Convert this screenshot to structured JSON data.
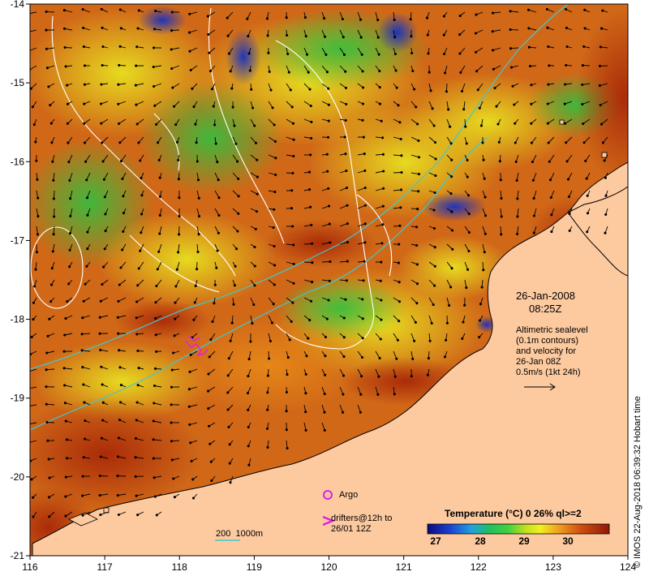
{
  "map": {
    "date_label": "26-Jan-2008",
    "time_label": "08:25Z",
    "altimetry_note": [
      "Altimetric sealevel",
      "(0.1m contours)",
      "and velocity for",
      "26-Jan 08Z",
      "0.5m/s (1kt 24h)"
    ],
    "argo_label": "Argo",
    "drifter_label": [
      "drifters@12h to",
      "26/01 12Z"
    ],
    "isobath_label": "200  1000m",
    "credit": "© IMOS 22-Aug-2018 06:39:32 Hobart time",
    "x_ticks": [
      "116",
      "117",
      "118",
      "119",
      "120",
      "121",
      "122",
      "123",
      "124"
    ],
    "y_ticks": [
      "-14",
      "-15",
      "-16",
      "-17",
      "-18",
      "-19",
      "-20",
      "-21"
    ],
    "legend": {
      "title": "Temperature (°C) 0 26% ql>=2",
      "ticks": [
        "27",
        "28",
        "29",
        "30"
      ],
      "range": [
        26.6,
        31.0
      ]
    },
    "colors": {
      "land": "#fdcaa0",
      "ocean_warm": "#b4320a",
      "ocean_mid": "#e8901a",
      "ocean_cool": "#2ab83c",
      "ocean_cold": "#1a30b8",
      "isobath": "#40c8d0",
      "contour": "#ffffff",
      "argo": "#e020e0",
      "drifter": "#e020e0"
    }
  }
}
